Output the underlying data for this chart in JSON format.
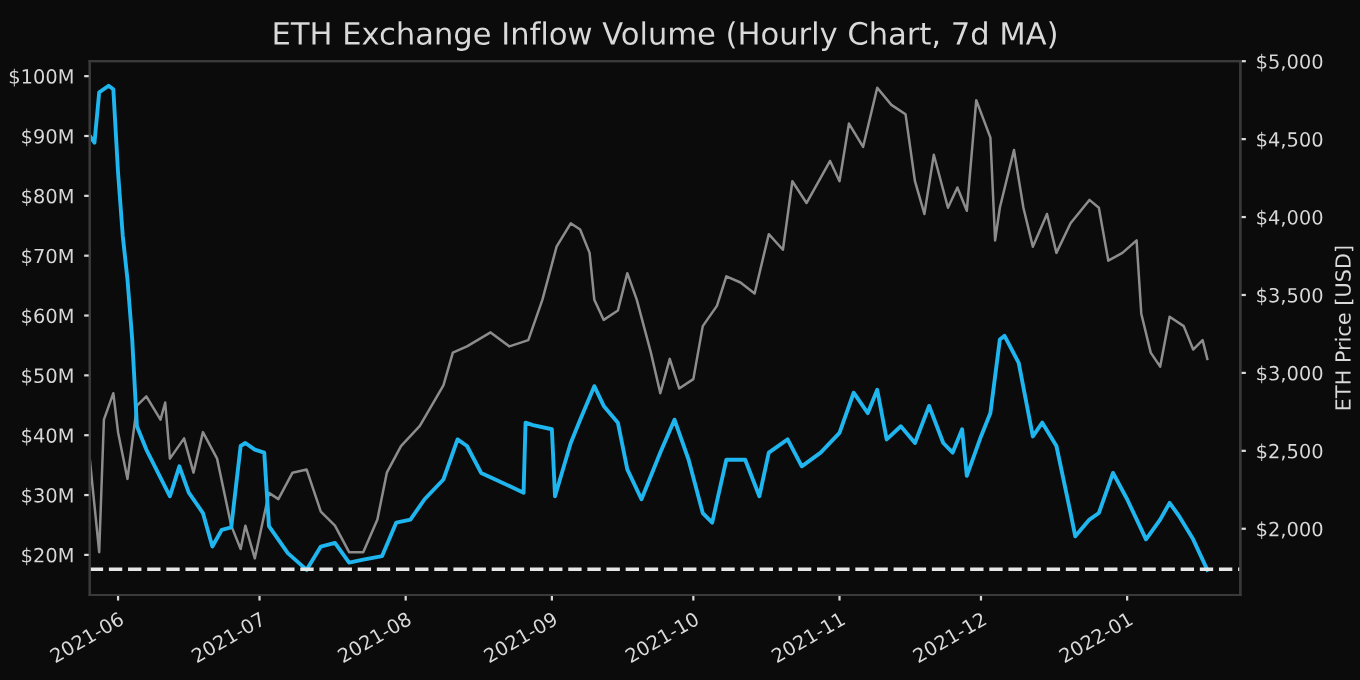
{
  "chart_data": {
    "type": "line",
    "title": "ETH Exchange Inflow Volume (Hourly Chart, 7d MA)",
    "y2label": "ETH Price [USD]",
    "xlim": [
      "2021-05-26",
      "2022-01-25"
    ],
    "xticks": [
      "2021-06",
      "2021-07",
      "2021-08",
      "2021-09",
      "2021-10",
      "2021-11",
      "2021-12",
      "2022-01"
    ],
    "ylim": [
      13.3,
      102.5
    ],
    "yticks": [
      {
        "value": 20,
        "label": "$20M"
      },
      {
        "value": 30,
        "label": "$30M"
      },
      {
        "value": 40,
        "label": "$40M"
      },
      {
        "value": 50,
        "label": "$50M"
      },
      {
        "value": 60,
        "label": "$60M"
      },
      {
        "value": 70,
        "label": "$70M"
      },
      {
        "value": 80,
        "label": "$80M"
      },
      {
        "value": 90,
        "label": "$90M"
      },
      {
        "value": 100,
        "label": "$100M"
      }
    ],
    "y2lim": [
      1575,
      5000
    ],
    "y2ticks": [
      {
        "value": 2000,
        "label": "$2,000"
      },
      {
        "value": 2500,
        "label": "$2,500"
      },
      {
        "value": 3000,
        "label": "$3,000"
      },
      {
        "value": 3500,
        "label": "$3,500"
      },
      {
        "value": 4000,
        "label": "$4,000"
      },
      {
        "value": 4500,
        "label": "$4,500"
      },
      {
        "value": 5000,
        "label": "$5,000"
      }
    ],
    "grid": false,
    "marker": "none",
    "line_style": "solid",
    "ref_lines": [
      {
        "axis": "y",
        "value": 17.6,
        "color": "#e6e6e6",
        "line_style": "dashed"
      }
    ],
    "series": [
      {
        "color": "#1fb5ee",
        "x": [
          "2021-05-26",
          "2021-05-27",
          "2021-05-28",
          "2021-05-30",
          "2021-05-31",
          "2021-06-01",
          "2021-06-02",
          "2021-06-03",
          "2021-06-04",
          "2021-06-05",
          "2021-06-07",
          "2021-06-12",
          "2021-06-14",
          "2021-06-16",
          "2021-06-19",
          "2021-06-21",
          "2021-06-23",
          "2021-06-25",
          "2021-06-27",
          "2021-06-28",
          "2021-06-30",
          "2021-07-02",
          "2021-07-03",
          "2021-07-07",
          "2021-07-11",
          "2021-07-14",
          "2021-07-17",
          "2021-07-20",
          "2021-07-23",
          "2021-07-27",
          "2021-07-30",
          "2021-08-02",
          "2021-08-05",
          "2021-08-09",
          "2021-08-12",
          "2021-08-14",
          "2021-08-17",
          "2021-08-20",
          "2021-08-23",
          "2021-08-26T00:00",
          "2021-08-26T10:00",
          "2021-08-28",
          "2021-09-01T00:00",
          "2021-09-01T16:00",
          "2021-09-05",
          "2021-09-07",
          "2021-09-10",
          "2021-09-12",
          "2021-09-15",
          "2021-09-17",
          "2021-09-20",
          "2021-09-24",
          "2021-09-27",
          "2021-09-30",
          "2021-10-03",
          "2021-10-05",
          "2021-10-08",
          "2021-10-12",
          "2021-10-15",
          "2021-10-17",
          "2021-10-21",
          "2021-10-24",
          "2021-10-28",
          "2021-11-01",
          "2021-11-04",
          "2021-11-07",
          "2021-11-09",
          "2021-11-11",
          "2021-11-14",
          "2021-11-17",
          "2021-11-20",
          "2021-11-23",
          "2021-11-25",
          "2021-11-27",
          "2021-11-28",
          "2021-12-01",
          "2021-12-03",
          "2021-12-05",
          "2021-12-06",
          "2021-12-09",
          "2021-12-12",
          "2021-12-14",
          "2021-12-17",
          "2021-12-20",
          "2021-12-21",
          "2021-12-24",
          "2021-12-26",
          "2021-12-29",
          "2022-01-01",
          "2022-01-05",
          "2022-01-08",
          "2022-01-10",
          "2022-01-12",
          "2022-01-15",
          "2022-01-18"
        ],
        "values": [
          90.0,
          88.9,
          97.3,
          98.4,
          97.8,
          83.9,
          73.3,
          66.0,
          56.0,
          41.5,
          37.6,
          29.8,
          34.8,
          30.4,
          27.0,
          21.4,
          24.2,
          24.6,
          38.2,
          38.7,
          37.6,
          37.1,
          24.8,
          20.3,
          17.5,
          21.4,
          22.0,
          18.7,
          19.2,
          19.8,
          25.4,
          25.9,
          29.3,
          32.6,
          39.3,
          38.2,
          33.7,
          32.6,
          31.5,
          30.4,
          42.1,
          41.7,
          41.0,
          29.8,
          38.7,
          42.6,
          48.2,
          44.9,
          42.1,
          34.3,
          29.3,
          37.1,
          42.6,
          35.9,
          27.0,
          25.4,
          35.9,
          35.9,
          29.8,
          37.1,
          39.3,
          34.8,
          37.1,
          40.4,
          47.1,
          43.7,
          47.6,
          39.3,
          41.5,
          38.7,
          44.9,
          38.7,
          37.1,
          41.0,
          33.2,
          39.8,
          43.7,
          56.0,
          56.6,
          52.1,
          39.8,
          42.1,
          38.2,
          27.0,
          23.1,
          25.9,
          27.0,
          33.7,
          29.3,
          22.6,
          25.9,
          28.7,
          26.5,
          22.6,
          17.5
        ]
      },
      {
        "color": "#8c8c8c",
        "axis": "y2",
        "x": [
          "2021-05-26",
          "2021-05-28",
          "2021-05-29",
          "2021-05-31",
          "2021-06-01",
          "2021-06-03",
          "2021-06-05",
          "2021-06-07",
          "2021-06-10",
          "2021-06-11",
          "2021-06-12",
          "2021-06-15",
          "2021-06-17",
          "2021-06-19",
          "2021-06-22",
          "2021-06-25",
          "2021-06-27",
          "2021-06-28",
          "2021-06-30",
          "2021-07-03",
          "2021-07-05",
          "2021-07-08",
          "2021-07-11",
          "2021-07-14",
          "2021-07-17",
          "2021-07-20",
          "2021-07-23",
          "2021-07-26",
          "2021-07-28",
          "2021-07-31",
          "2021-08-04",
          "2021-08-09",
          "2021-08-11",
          "2021-08-14",
          "2021-08-19",
          "2021-08-23",
          "2021-08-27",
          "2021-08-30",
          "2021-09-02",
          "2021-09-05",
          "2021-09-07",
          "2021-09-09",
          "2021-09-10",
          "2021-09-12",
          "2021-09-15",
          "2021-09-17",
          "2021-09-19",
          "2021-09-22",
          "2021-09-24",
          "2021-09-26",
          "2021-09-28",
          "2021-10-01",
          "2021-10-03",
          "2021-10-06",
          "2021-10-08",
          "2021-10-11",
          "2021-10-14",
          "2021-10-17",
          "2021-10-20",
          "2021-10-22",
          "2021-10-25",
          "2021-10-30",
          "2021-11-01",
          "2021-11-03",
          "2021-11-06",
          "2021-11-09",
          "2021-11-12",
          "2021-11-15",
          "2021-11-17",
          "2021-11-19",
          "2021-11-21",
          "2021-11-24",
          "2021-11-26",
          "2021-11-28",
          "2021-11-30",
          "2021-12-03",
          "2021-12-04",
          "2021-12-05",
          "2021-12-08",
          "2021-12-10",
          "2021-12-12",
          "2021-12-15",
          "2021-12-17",
          "2021-12-20",
          "2021-12-24",
          "2021-12-26",
          "2021-12-28",
          "2021-12-31",
          "2022-01-03",
          "2022-01-04",
          "2022-01-06",
          "2022-01-08",
          "2022-01-10",
          "2022-01-13",
          "2022-01-15",
          "2022-01-17",
          "2022-01-18"
        ],
        "values": [
          2450,
          1850,
          2700,
          2870,
          2620,
          2320,
          2790,
          2850,
          2700,
          2810,
          2450,
          2580,
          2360,
          2620,
          2450,
          2020,
          1870,
          2020,
          1810,
          2230,
          2190,
          2360,
          2380,
          2110,
          2020,
          1850,
          1850,
          2060,
          2360,
          2530,
          2660,
          2920,
          3130,
          3170,
          3260,
          3170,
          3210,
          3470,
          3810,
          3960,
          3920,
          3770,
          3470,
          3340,
          3400,
          3640,
          3470,
          3130,
          2870,
          3090,
          2900,
          2960,
          3300,
          3430,
          3620,
          3580,
          3510,
          3890,
          3790,
          4230,
          4090,
          4360,
          4230,
          4600,
          4450,
          4830,
          4720,
          4660,
          4230,
          4020,
          4400,
          4060,
          4190,
          4040,
          4750,
          4510,
          3850,
          4060,
          4430,
          4060,
          3810,
          4020,
          3770,
          3960,
          4110,
          4060,
          3720,
          3770,
          3850,
          3380,
          3130,
          3040,
          3360,
          3300,
          3150,
          3210,
          3090
        ]
      }
    ]
  }
}
